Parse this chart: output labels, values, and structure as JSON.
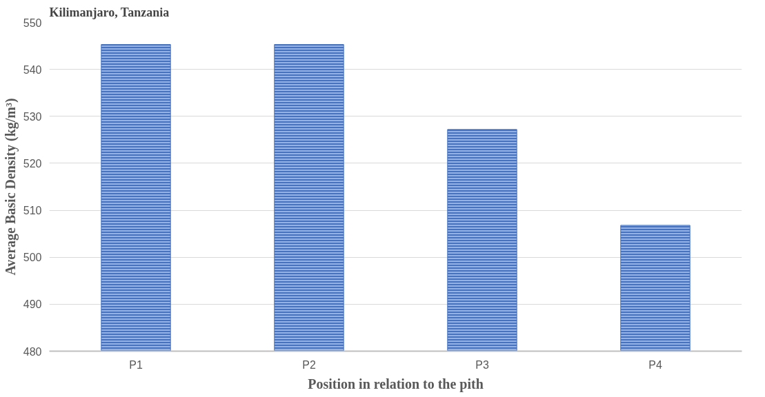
{
  "chart_data": {
    "type": "bar",
    "title": "Kilimanjaro, Tanzania",
    "xlabel": "Position in relation to the pith",
    "ylabel": "Average Basic Density (kg/m³)",
    "categories": [
      "P1",
      "P2",
      "P3",
      "P4"
    ],
    "values": [
      545.3,
      545.3,
      527.2,
      506.8
    ],
    "color": "#4472c4",
    "ylim": [
      480,
      550
    ],
    "yticks": [
      480,
      490,
      500,
      510,
      520,
      530,
      540,
      550
    ],
    "grid": "y"
  }
}
